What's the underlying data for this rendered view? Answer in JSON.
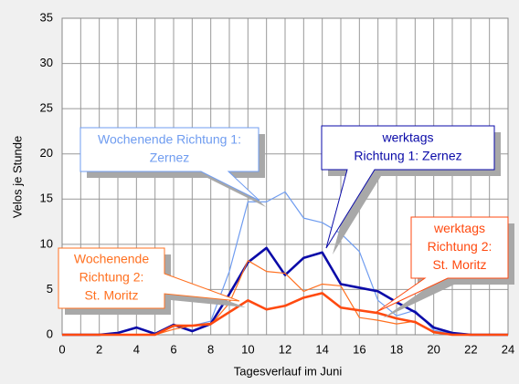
{
  "chart_data": {
    "type": "line",
    "ylabel": "Velos je Stunde",
    "xlabel": "Tagesverlauf im Juni",
    "x": [
      0,
      1,
      2,
      3,
      4,
      5,
      6,
      7,
      8,
      9,
      10,
      11,
      12,
      13,
      14,
      15,
      16,
      17,
      18,
      19,
      20,
      21,
      22,
      23,
      24
    ],
    "xlim": [
      0,
      24
    ],
    "xticks": [
      0,
      2,
      4,
      6,
      8,
      10,
      12,
      14,
      16,
      18,
      20,
      22,
      24
    ],
    "ylim": [
      0,
      35
    ],
    "yticks": [
      0,
      5,
      10,
      15,
      20,
      25,
      30,
      35
    ],
    "grid": true,
    "series": [
      {
        "name": "Wochenende Richtung 1",
        "color": "#6f9cf0",
        "width": 1.2,
        "values": [
          0,
          0,
          0,
          0,
          0,
          0,
          1.1,
          1,
          1.5,
          7,
          14.7,
          14.7,
          15.8,
          12.9,
          12.4,
          11.2,
          9.2,
          3.8,
          2.1,
          2.7,
          0.5,
          0.1,
          0,
          0,
          0
        ]
      },
      {
        "name": "werktags Richtung 1",
        "color": "#0a0aa8",
        "width": 2.6,
        "values": [
          0,
          0,
          0,
          0.2,
          0.8,
          0.1,
          1.1,
          0.4,
          1.2,
          4.5,
          8,
          9.6,
          6.6,
          8.5,
          9.1,
          5.6,
          5.2,
          4.8,
          3.6,
          2.5,
          0.8,
          0.2,
          0,
          0,
          0
        ]
      },
      {
        "name": "Wochenende Richtung 2",
        "color": "#ff7020",
        "width": 1.2,
        "values": [
          0,
          0,
          0,
          0,
          0,
          0,
          0.6,
          1,
          1.1,
          3.5,
          8.2,
          7,
          6.8,
          4.8,
          5.6,
          5.4,
          1.9,
          1.6,
          1.2,
          1.5,
          0.2,
          0,
          0,
          0,
          0
        ]
      },
      {
        "name": "werktags Richtung 2",
        "color": "#ff4a10",
        "width": 2.6,
        "values": [
          0,
          0,
          0,
          0,
          0,
          0,
          1,
          1,
          1.2,
          2.5,
          3.8,
          2.8,
          3.2,
          4.1,
          4.6,
          3,
          2.7,
          2.4,
          1.8,
          1.4,
          0.3,
          0,
          0,
          0,
          0
        ]
      }
    ],
    "annotations": [
      {
        "lines": [
          "Wochenende Richtung 1:",
          "Zernez"
        ],
        "color": "#6f9cf0"
      },
      {
        "lines": [
          "werktags",
          "Richtung 1: Zernez"
        ],
        "color": "#0a0aa8"
      },
      {
        "lines": [
          "Wochenende",
          "Richtung 2:",
          "St. Moritz"
        ],
        "color": "#ff7020"
      },
      {
        "lines": [
          "werktags",
          "Richtung 2:",
          "St. Moritz"
        ],
        "color": "#ff4a10"
      }
    ]
  }
}
